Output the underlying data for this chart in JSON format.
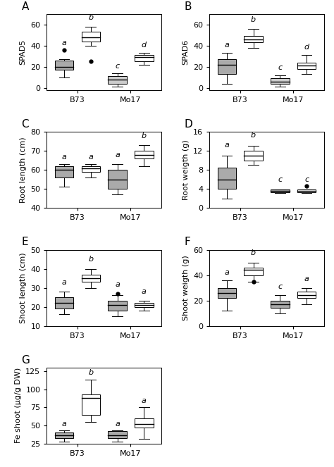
{
  "panels": [
    {
      "label": "A",
      "ylabel": "SPAD5",
      "ylim": [
        -2,
        70
      ],
      "yticks": [
        0,
        20,
        40,
        60
      ],
      "groups": [
        {
          "x": 1,
          "color": "#aaaaaa",
          "q1": 17,
          "q2": 20,
          "q3": 26,
          "whislo": 10,
          "whishi": 27,
          "fliers": [
            36
          ],
          "sig": "a",
          "sig_y": 39
        },
        {
          "x": 2,
          "color": "#ffffff",
          "q1": 44,
          "q2": 48,
          "q3": 53,
          "whislo": 40,
          "whishi": 58,
          "fliers": [
            25
          ],
          "sig": "b",
          "sig_y": 63
        },
        {
          "x": 3,
          "color": "#cccccc",
          "q1": 4,
          "q2": 8,
          "q3": 11,
          "whislo": 1,
          "whishi": 14,
          "fliers": [],
          "sig": "c",
          "sig_y": 17
        },
        {
          "x": 4,
          "color": "#ffffff",
          "q1": 25,
          "q2": 29,
          "q3": 31,
          "whislo": 22,
          "whishi": 33,
          "fliers": [],
          "sig": "d",
          "sig_y": 37
        }
      ],
      "xtick_pos": [
        1.5,
        3.5
      ],
      "xtick_labels": [
        "B73",
        "Mo17"
      ]
    },
    {
      "label": "B",
      "ylabel": "SPAD6",
      "ylim": [
        -2,
        70
      ],
      "yticks": [
        0,
        20,
        40,
        60
      ],
      "groups": [
        {
          "x": 1,
          "color": "#aaaaaa",
          "q1": 13,
          "q2": 22,
          "q3": 27,
          "whislo": 4,
          "whishi": 33,
          "fliers": [],
          "sig": "a",
          "sig_y": 37
        },
        {
          "x": 2,
          "color": "#ffffff",
          "q1": 43,
          "q2": 46,
          "q3": 49,
          "whislo": 38,
          "whishi": 56,
          "fliers": [],
          "sig": "b",
          "sig_y": 61
        },
        {
          "x": 3,
          "color": "#cccccc",
          "q1": 4,
          "q2": 6,
          "q3": 9,
          "whislo": 1,
          "whishi": 12,
          "fliers": [],
          "sig": "c",
          "sig_y": 16
        },
        {
          "x": 4,
          "color": "#ffffff",
          "q1": 18,
          "q2": 21,
          "q3": 24,
          "whislo": 13,
          "whishi": 31,
          "fliers": [],
          "sig": "d",
          "sig_y": 35
        }
      ],
      "xtick_pos": [
        1.5,
        3.5
      ],
      "xtick_labels": [
        "B73",
        "Mo17"
      ]
    },
    {
      "label": "C",
      "ylabel": "Root length (cm)",
      "ylim": [
        40,
        80
      ],
      "yticks": [
        40,
        50,
        60,
        70,
        80
      ],
      "groups": [
        {
          "x": 1,
          "color": "#aaaaaa",
          "q1": 56,
          "q2": 60,
          "q3": 62,
          "whislo": 51,
          "whishi": 63,
          "fliers": [],
          "sig": "a",
          "sig_y": 65
        },
        {
          "x": 2,
          "color": "#ffffff",
          "q1": 59,
          "q2": 61,
          "q3": 62,
          "whislo": 56,
          "whishi": 63,
          "fliers": [],
          "sig": "a",
          "sig_y": 65
        },
        {
          "x": 3,
          "color": "#aaaaaa",
          "q1": 50,
          "q2": 55,
          "q3": 60,
          "whislo": 47,
          "whishi": 63,
          "fliers": [],
          "sig": "a",
          "sig_y": 66
        },
        {
          "x": 4,
          "color": "#ffffff",
          "q1": 66,
          "q2": 68,
          "q3": 70,
          "whislo": 62,
          "whishi": 73,
          "fliers": [],
          "sig": "b",
          "sig_y": 76
        }
      ],
      "xtick_pos": [
        1.5,
        3.5
      ],
      "xtick_labels": [
        "B73",
        "Mo17"
      ]
    },
    {
      "label": "D",
      "ylabel": "Root weigth (g)",
      "ylim": [
        0,
        16
      ],
      "yticks": [
        0,
        4,
        8,
        12,
        16
      ],
      "groups": [
        {
          "x": 1,
          "color": "#aaaaaa",
          "q1": 4.0,
          "q2": 6.0,
          "q3": 8.5,
          "whislo": 2.0,
          "whishi": 11.0,
          "fliers": [],
          "sig": "a",
          "sig_y": 12.5
        },
        {
          "x": 2,
          "color": "#ffffff",
          "q1": 10.0,
          "q2": 11.0,
          "q3": 12.0,
          "whislo": 9.0,
          "whishi": 13.0,
          "fliers": [],
          "sig": "b",
          "sig_y": 14.5
        },
        {
          "x": 3,
          "color": "#aaaaaa",
          "q1": 3.3,
          "q2": 3.6,
          "q3": 3.85,
          "whislo": 3.1,
          "whishi": 3.95,
          "fliers": [],
          "sig": "c",
          "sig_y": 5.2
        },
        {
          "x": 4,
          "color": "#ffffff",
          "q1": 3.3,
          "q2": 3.6,
          "q3": 3.85,
          "whislo": 3.1,
          "whishi": 3.95,
          "fliers": [
            4.55
          ],
          "sig": "c",
          "sig_y": 5.2
        }
      ],
      "xtick_pos": [
        1.5,
        3.5
      ],
      "xtick_labels": [
        "B73",
        "Mo17"
      ]
    },
    {
      "label": "E",
      "ylabel": "Shoot length (cm)",
      "ylim": [
        10,
        50
      ],
      "yticks": [
        10,
        20,
        30,
        40,
        50
      ],
      "groups": [
        {
          "x": 1,
          "color": "#aaaaaa",
          "q1": 19,
          "q2": 22,
          "q3": 25,
          "whislo": 16,
          "whishi": 28,
          "fliers": [],
          "sig": "a",
          "sig_y": 31
        },
        {
          "x": 2,
          "color": "#ffffff",
          "q1": 33,
          "q2": 35,
          "q3": 37,
          "whislo": 30,
          "whishi": 40,
          "fliers": [],
          "sig": "b",
          "sig_y": 43
        },
        {
          "x": 3,
          "color": "#aaaaaa",
          "q1": 18,
          "q2": 21,
          "q3": 23,
          "whislo": 15,
          "whishi": 26,
          "fliers": [
            27
          ],
          "sig": "a",
          "sig_y": 30
        },
        {
          "x": 4,
          "color": "#ffffff",
          "q1": 20,
          "q2": 21,
          "q3": 22,
          "whislo": 18,
          "whishi": 23,
          "fliers": [],
          "sig": "a",
          "sig_y": 26
        }
      ],
      "xtick_pos": [
        1.5,
        3.5
      ],
      "xtick_labels": [
        "B73",
        "Mo17"
      ]
    },
    {
      "label": "F",
      "ylabel": "Shoot weigth (g)",
      "ylim": [
        0,
        60
      ],
      "yticks": [
        0,
        20,
        40,
        60
      ],
      "groups": [
        {
          "x": 1,
          "color": "#aaaaaa",
          "q1": 22,
          "q2": 26,
          "q3": 30,
          "whislo": 12,
          "whishi": 36,
          "fliers": [],
          "sig": "a",
          "sig_y": 39
        },
        {
          "x": 2,
          "color": "#ffffff",
          "q1": 40,
          "q2": 44,
          "q3": 46,
          "whislo": 35,
          "whishi": 50,
          "fliers": [
            35
          ],
          "sig": "b",
          "sig_y": 55
        },
        {
          "x": 3,
          "color": "#aaaaaa",
          "q1": 14,
          "q2": 17,
          "q3": 20,
          "whislo": 10,
          "whishi": 24,
          "fliers": [],
          "sig": "c",
          "sig_y": 28
        },
        {
          "x": 4,
          "color": "#ffffff",
          "q1": 22,
          "q2": 24,
          "q3": 27,
          "whislo": 17,
          "whishi": 30,
          "fliers": [],
          "sig": "a",
          "sig_y": 34
        }
      ],
      "xtick_pos": [
        1.5,
        3.5
      ],
      "xtick_labels": [
        "B73",
        "Mo17"
      ]
    },
    {
      "label": "G",
      "ylabel": "Fe shoot (μg/g DW)",
      "ylim": [
        25,
        130
      ],
      "yticks": [
        25,
        50,
        75,
        100,
        125
      ],
      "groups": [
        {
          "x": 1,
          "color": "#aaaaaa",
          "q1": 33,
          "q2": 37,
          "q3": 40,
          "whislo": 28,
          "whishi": 43,
          "fliers": [],
          "sig": "a",
          "sig_y": 47
        },
        {
          "x": 2,
          "color": "#ffffff",
          "q1": 65,
          "q2": 88,
          "q3": 93,
          "whislo": 55,
          "whishi": 113,
          "fliers": [],
          "sig": "b",
          "sig_y": 118
        },
        {
          "x": 3,
          "color": "#aaaaaa",
          "q1": 33,
          "q2": 37,
          "q3": 42,
          "whislo": 28,
          "whishi": 43,
          "fliers": [],
          "sig": "a",
          "sig_y": 47
        },
        {
          "x": 4,
          "color": "#ffffff",
          "q1": 47,
          "q2": 52,
          "q3": 60,
          "whislo": 32,
          "whishi": 75,
          "fliers": [],
          "sig": "a",
          "sig_y": 79
        }
      ],
      "xtick_pos": [
        1.5,
        3.5
      ],
      "xtick_labels": [
        "B73",
        "Mo17"
      ]
    }
  ],
  "box_width": 0.7,
  "sig_fontsize": 8,
  "tick_fontsize": 8,
  "ylabel_fontsize": 8,
  "panel_label_fontsize": 11
}
